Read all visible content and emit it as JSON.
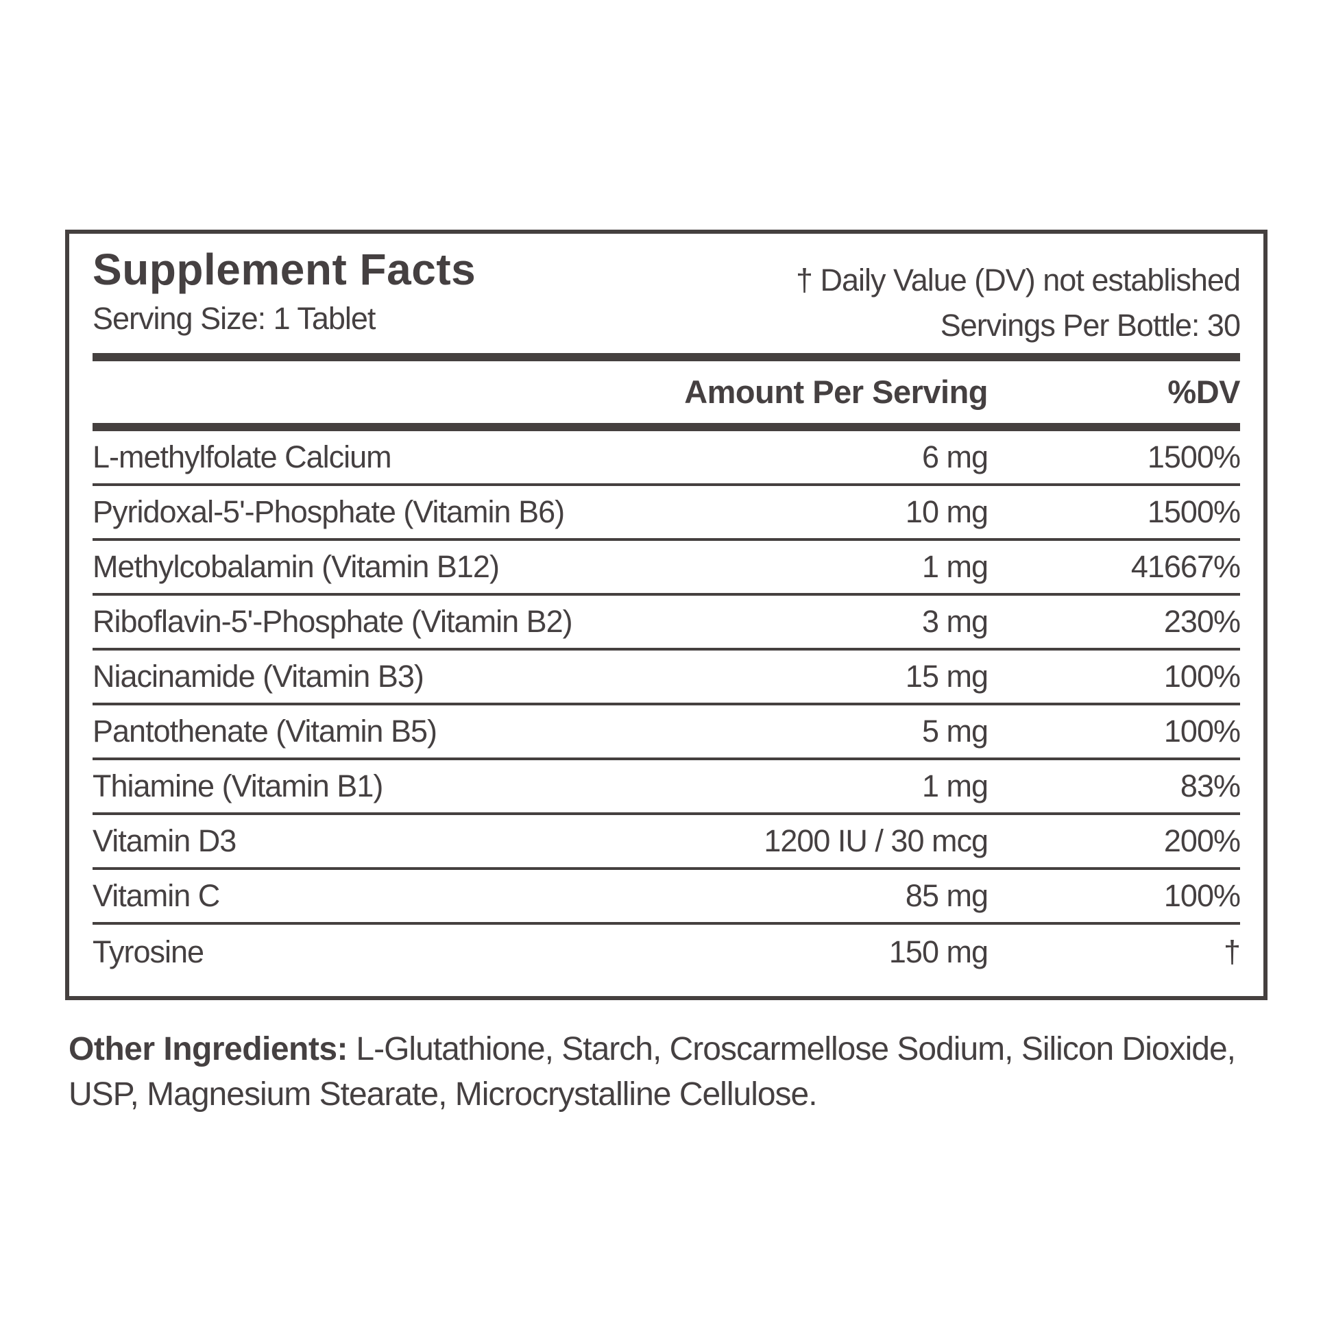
{
  "label": {
    "title": "Supplement Facts",
    "dv_note": "† Daily Value (DV) not established",
    "serving_size": "Serving Size: 1 Tablet",
    "servings_per_bottle": "Servings Per Bottle: 30",
    "columns": {
      "amount": "Amount Per Serving",
      "dv": "%DV"
    },
    "rows": [
      {
        "name": "L-methylfolate Calcium",
        "amount": "6 mg",
        "dv": "1500%"
      },
      {
        "name": "Pyridoxal-5'-Phosphate (Vitamin B6)",
        "amount": "10 mg",
        "dv": "1500%"
      },
      {
        "name": "Methylcobalamin (Vitamin B12)",
        "amount": "1 mg",
        "dv": "41667%"
      },
      {
        "name": "Riboflavin-5'-Phosphate (Vitamin B2)",
        "amount": "3 mg",
        "dv": "230%"
      },
      {
        "name": "Niacinamide (Vitamin B3)",
        "amount": "15 mg",
        "dv": "100%"
      },
      {
        "name": "Pantothenate (Vitamin B5)",
        "amount": "5 mg",
        "dv": "100%"
      },
      {
        "name": "Thiamine (Vitamin B1)",
        "amount": "1 mg",
        "dv": "83%"
      },
      {
        "name": "Vitamin D3",
        "amount": "1200 IU / 30 mcg",
        "dv": "200%"
      },
      {
        "name": "Vitamin C",
        "amount": "85 mg",
        "dv": "100%"
      },
      {
        "name": "Tyrosine",
        "amount": "150 mg",
        "dv": "†"
      }
    ],
    "other_ingredients_label": "Other Ingredients:",
    "other_ingredients_text": " L-Glutathione, Starch, Croscarmellose Sodium, Silicon Dioxide, USP, Magnesium Stearate, Microcrystalline Cellulose.",
    "colors": {
      "text": "#454041",
      "rule": "#45403f",
      "background": "#ffffff"
    }
  }
}
